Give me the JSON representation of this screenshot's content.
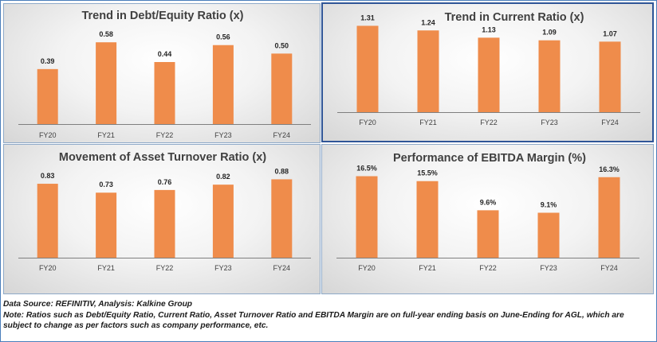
{
  "colors": {
    "bar": "#ef8c4b",
    "axis": "#7f7f7f"
  },
  "chart_data": [
    {
      "type": "bar",
      "title": "Trend in Debt/Equity Ratio (x)",
      "categories": [
        "FY20",
        "FY21",
        "FY22",
        "FY23",
        "FY24"
      ],
      "values": [
        0.39,
        0.58,
        0.44,
        0.56,
        0.5
      ],
      "labels": [
        "0.39",
        "0.58",
        "0.44",
        "0.56",
        "0.50"
      ],
      "ylim": [
        0,
        0.66
      ],
      "grid": false
    },
    {
      "type": "bar",
      "title": "Trend in Current Ratio (x)",
      "categories": [
        "FY20",
        "FY21",
        "FY22",
        "FY23",
        "FY24"
      ],
      "values": [
        1.31,
        1.24,
        1.13,
        1.09,
        1.07
      ],
      "labels": [
        "1.31",
        "1.24",
        "1.13",
        "1.09",
        "1.07"
      ],
      "ylim": [
        0,
        1.4
      ],
      "grid": false
    },
    {
      "type": "bar",
      "title": "Movement of Asset Turnover Ratio (x)",
      "categories": [
        "FY20",
        "FY21",
        "FY22",
        "FY23",
        "FY24"
      ],
      "values": [
        0.83,
        0.73,
        0.76,
        0.82,
        0.88
      ],
      "labels": [
        "0.83",
        "0.73",
        "0.76",
        "0.82",
        "0.88"
      ],
      "ylim": [
        0,
        1.0
      ],
      "grid": false
    },
    {
      "type": "bar",
      "title": "Performance of EBITDA Margin (%)",
      "categories": [
        "FY20",
        "FY21",
        "FY22",
        "FY23",
        "FY24"
      ],
      "values": [
        16.5,
        15.5,
        9.6,
        9.1,
        16.3
      ],
      "labels": [
        "16.5%",
        "15.5%",
        "9.6%",
        "9.1%",
        "16.3%"
      ],
      "ylim": [
        0,
        19
      ],
      "grid": false
    }
  ],
  "footer": {
    "source": "Data Source: REFINITIV, Analysis: Kalkine Group",
    "note": "Note: Ratios such as Debt/Equity Ratio, Current Ratio, Asset Turnover Ratio and EBITDA Margin are on full-year ending basis on June-Ending for AGL, which are subject to change as per factors such as company performance, etc."
  }
}
